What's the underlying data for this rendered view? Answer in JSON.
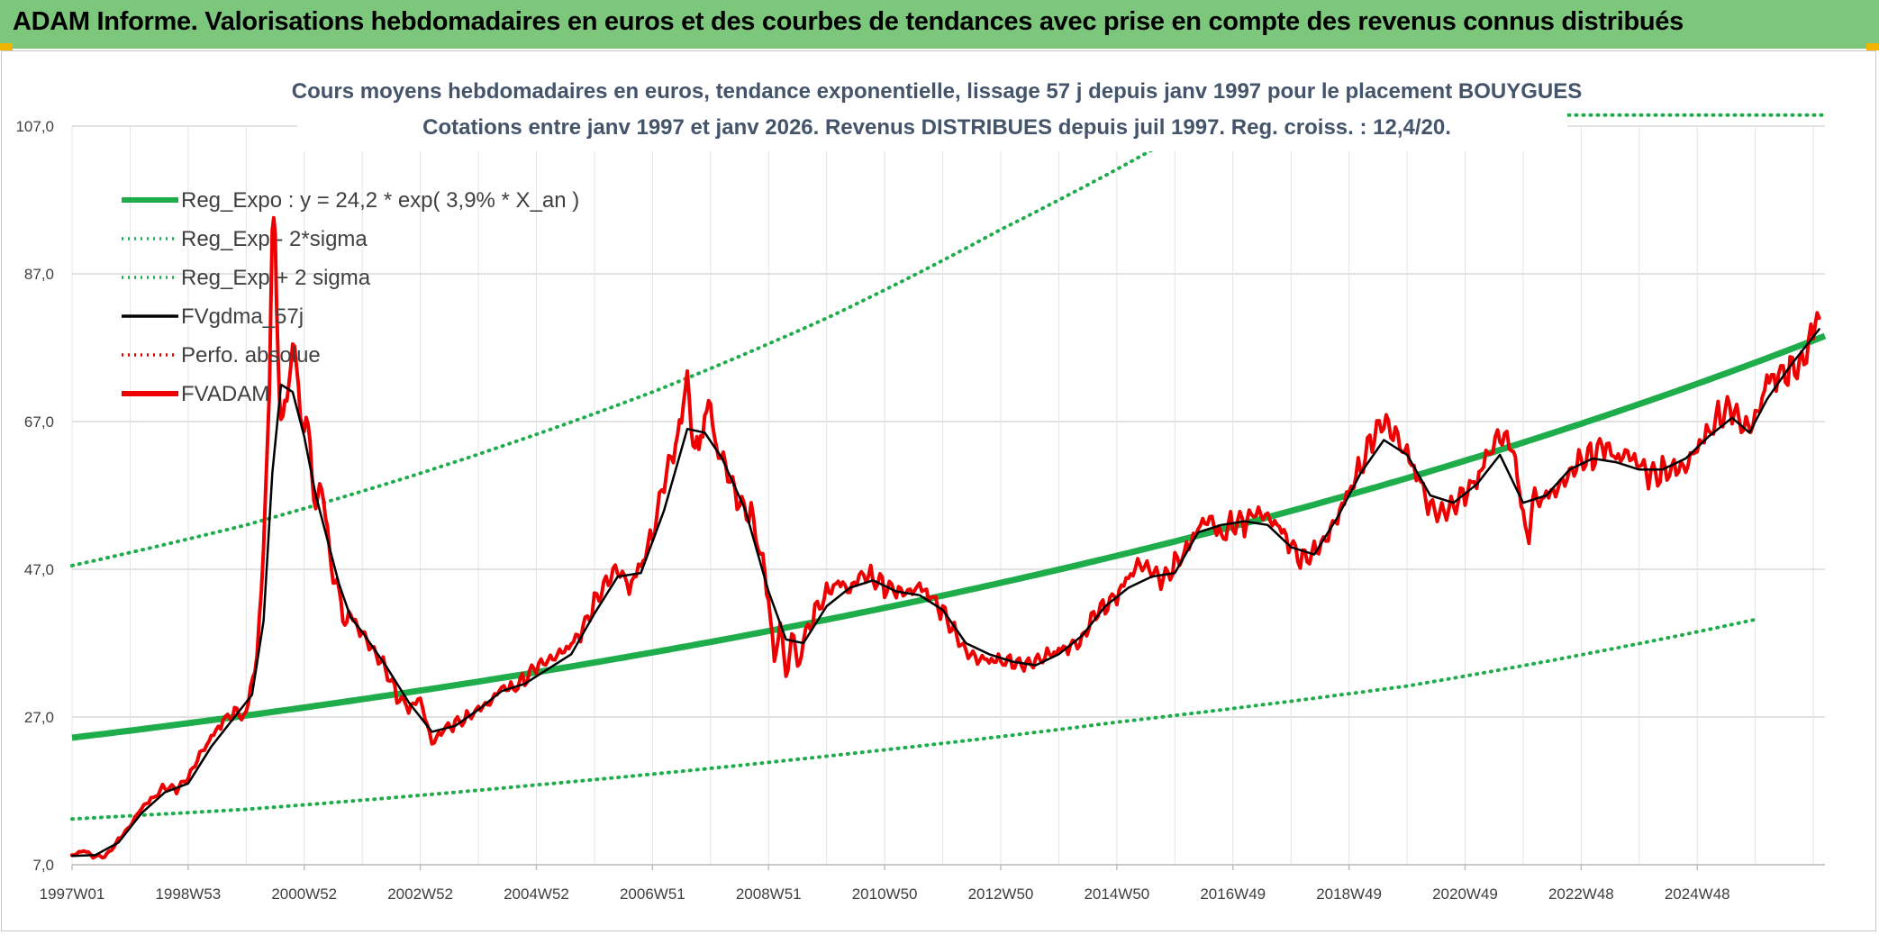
{
  "header": {
    "title": "ADAM Informe. Valorisations hebdomadaires en euros et des courbes de tendances avec prise en compte des revenus connus distribués"
  },
  "colors": {
    "banner": "#7dc77d",
    "reg_expo": "#1fad4c",
    "sigma_bands": "#1fad4c",
    "fvgdma": "#000000",
    "perfo": "#e00000",
    "fvadam": "#ee0000",
    "title_text": "#44546a"
  },
  "chart_data": {
    "type": "line",
    "title": "Cours moyens hebdomadaires en euros, tendance exponentielle, lissage 57 j depuis janv 1997 pour le placement BOUYGUES",
    "subtitle": "Cotations entre janv 1997 et janv 2026. Revenus DISTRIBUES depuis juil 1997. Reg. croiss. : 12,4/20.",
    "xlabel": "",
    "ylabel": "",
    "ylim": [
      7.0,
      107.0
    ],
    "y_ticks": [
      "7,0",
      "27,0",
      "47,0",
      "67,0",
      "87,0",
      "107,0"
    ],
    "x_range": [
      1997.0,
      2026.1
    ],
    "x_ticks": [
      {
        "label": "1997W01",
        "year": 1997.0
      },
      {
        "label": "1998W53",
        "year": 1999.0
      },
      {
        "label": "2000W52",
        "year": 2001.0
      },
      {
        "label": "2002W52",
        "year": 2003.0
      },
      {
        "label": "2004W52",
        "year": 2005.0
      },
      {
        "label": "2006W51",
        "year": 2007.0
      },
      {
        "label": "2008W51",
        "year": 2009.0
      },
      {
        "label": "2010W50",
        "year": 2011.0
      },
      {
        "label": "2012W50",
        "year": 2013.0
      },
      {
        "label": "2014W50",
        "year": 2015.0
      },
      {
        "label": "2016W49",
        "year": 2017.0
      },
      {
        "label": "2018W49",
        "year": 2019.0
      },
      {
        "label": "2020W49",
        "year": 2021.0
      },
      {
        "label": "2022W48",
        "year": 2023.0
      },
      {
        "label": "2024W48",
        "year": 2025.0
      }
    ],
    "grid": true,
    "legend_position": "top-left",
    "legend": [
      {
        "label": "Reg_Expo : y = 24,2 * exp( 3,9% *  X_an )",
        "style": "solid-thick",
        "color": "#1fad4c"
      },
      {
        "label": "Reg_Exp - 2*sigma",
        "style": "dotted",
        "color": "#1fad4c"
      },
      {
        "label": "Reg_Exp + 2 sigma",
        "style": "dotted",
        "color": "#1fad4c"
      },
      {
        "label": "FVgdma_57j",
        "style": "solid",
        "color": "#000000"
      },
      {
        "label": "Perfo. absolue",
        "style": "dotted",
        "color": "#e00000"
      },
      {
        "label": "FVADAM",
        "style": "solid-thick",
        "color": "#ee0000"
      }
    ],
    "regression": {
      "a": 24.2,
      "rate": 0.039,
      "x0": 1997.0
    },
    "bands": {
      "lower": [
        [
          1997.0,
          13.2
        ],
        [
          2000.0,
          14.5
        ],
        [
          2005.0,
          17.8
        ],
        [
          2010.0,
          21.7
        ],
        [
          2015.0,
          26.3
        ],
        [
          2020.0,
          31.2
        ],
        [
          2026.0,
          40.2
        ]
      ],
      "upper": [
        [
          1997.0,
          47.5
        ],
        [
          2000.0,
          53.0
        ],
        [
          2003.0,
          60.0
        ],
        [
          2007.0,
          71.0
        ],
        [
          2010.0,
          81.0
        ],
        [
          2013.0,
          93.0
        ],
        [
          2016.0,
          105.5
        ],
        [
          2016.1,
          108.5
        ],
        [
          2026.0,
          108.5
        ]
      ]
    },
    "series": [
      {
        "name": "FVADAM",
        "points": [
          [
            1997.0,
            8.1
          ],
          [
            1997.2,
            8.8
          ],
          [
            1997.4,
            8.0
          ],
          [
            1997.6,
            8.3
          ],
          [
            1997.8,
            10.5
          ],
          [
            1998.0,
            12.5
          ],
          [
            1998.2,
            15.0
          ],
          [
            1998.4,
            16.2
          ],
          [
            1998.6,
            17.5
          ],
          [
            1998.8,
            17.0
          ],
          [
            1999.0,
            18.5
          ],
          [
            1999.2,
            21.5
          ],
          [
            1999.4,
            24.0
          ],
          [
            1999.6,
            26.5
          ],
          [
            1999.8,
            28.0
          ],
          [
            2000.0,
            27.5
          ],
          [
            2000.15,
            33.0
          ],
          [
            2000.3,
            48.0
          ],
          [
            2000.4,
            74.0
          ],
          [
            2000.45,
            92.0
          ],
          [
            2000.5,
            90.0
          ],
          [
            2000.55,
            76.0
          ],
          [
            2000.6,
            68.0
          ],
          [
            2000.7,
            70.0
          ],
          [
            2000.8,
            77.0
          ],
          [
            2000.9,
            72.0
          ],
          [
            2001.0,
            66.0
          ],
          [
            2001.1,
            64.0
          ],
          [
            2001.2,
            55.0
          ],
          [
            2001.3,
            59.0
          ],
          [
            2001.4,
            51.0
          ],
          [
            2001.5,
            47.0
          ],
          [
            2001.6,
            43.0
          ],
          [
            2001.7,
            40.0
          ],
          [
            2001.8,
            41.0
          ],
          [
            2002.0,
            39.0
          ],
          [
            2002.2,
            36.5
          ],
          [
            2002.4,
            34.0
          ],
          [
            2002.6,
            30.0
          ],
          [
            2002.8,
            28.0
          ],
          [
            2003.0,
            29.0
          ],
          [
            2003.2,
            23.0
          ],
          [
            2003.4,
            25.0
          ],
          [
            2003.6,
            26.0
          ],
          [
            2003.8,
            27.0
          ],
          [
            2004.0,
            28.5
          ],
          [
            2004.2,
            29.5
          ],
          [
            2004.4,
            31.5
          ],
          [
            2004.6,
            31.0
          ],
          [
            2004.8,
            32.0
          ],
          [
            2005.0,
            33.5
          ],
          [
            2005.2,
            34.0
          ],
          [
            2005.4,
            35.0
          ],
          [
            2005.6,
            36.5
          ],
          [
            2005.8,
            39.0
          ],
          [
            2006.0,
            43.0
          ],
          [
            2006.2,
            46.0
          ],
          [
            2006.4,
            48.0
          ],
          [
            2006.6,
            45.0
          ],
          [
            2006.8,
            47.5
          ],
          [
            2007.0,
            51.0
          ],
          [
            2007.2,
            58.0
          ],
          [
            2007.4,
            63.0
          ],
          [
            2007.5,
            69.0
          ],
          [
            2007.6,
            71.0
          ],
          [
            2007.7,
            66.0
          ],
          [
            2007.8,
            62.0
          ],
          [
            2007.9,
            68.0
          ],
          [
            2008.0,
            70.0
          ],
          [
            2008.1,
            63.0
          ],
          [
            2008.3,
            59.0
          ],
          [
            2008.5,
            55.0
          ],
          [
            2008.7,
            54.0
          ],
          [
            2008.9,
            48.0
          ],
          [
            2009.0,
            43.0
          ],
          [
            2009.1,
            35.0
          ],
          [
            2009.2,
            39.0
          ],
          [
            2009.3,
            33.0
          ],
          [
            2009.4,
            38.0
          ],
          [
            2009.5,
            34.0
          ],
          [
            2009.6,
            37.0
          ],
          [
            2009.8,
            41.0
          ],
          [
            2010.0,
            44.0
          ],
          [
            2010.2,
            46.0
          ],
          [
            2010.4,
            45.0
          ],
          [
            2010.6,
            47.0
          ],
          [
            2010.8,
            46.0
          ],
          [
            2011.0,
            44.5
          ],
          [
            2011.2,
            43.5
          ],
          [
            2011.4,
            43.0
          ],
          [
            2011.6,
            44.0
          ],
          [
            2011.8,
            43.0
          ],
          [
            2012.0,
            41.5
          ],
          [
            2012.2,
            39.0
          ],
          [
            2012.4,
            36.5
          ],
          [
            2012.6,
            35.5
          ],
          [
            2012.8,
            35.0
          ],
          [
            2013.0,
            34.5
          ],
          [
            2013.2,
            34.0
          ],
          [
            2013.4,
            33.5
          ],
          [
            2013.6,
            34.0
          ],
          [
            2013.8,
            35.0
          ],
          [
            2014.0,
            36.0
          ],
          [
            2014.2,
            37.0
          ],
          [
            2014.4,
            38.0
          ],
          [
            2014.6,
            41.5
          ],
          [
            2014.8,
            42.5
          ],
          [
            2015.0,
            43.5
          ],
          [
            2015.2,
            45.5
          ],
          [
            2015.4,
            47.0
          ],
          [
            2015.6,
            46.0
          ],
          [
            2015.8,
            45.0
          ],
          [
            2016.0,
            47.5
          ],
          [
            2016.2,
            50.0
          ],
          [
            2016.4,
            53.5
          ],
          [
            2016.6,
            55.0
          ],
          [
            2016.8,
            52.0
          ],
          [
            2017.0,
            53.5
          ],
          [
            2017.2,
            53.0
          ],
          [
            2017.4,
            54.0
          ],
          [
            2017.6,
            53.0
          ],
          [
            2017.8,
            52.0
          ],
          [
            2018.0,
            50.0
          ],
          [
            2018.2,
            48.5
          ],
          [
            2018.4,
            50.0
          ],
          [
            2018.6,
            52.0
          ],
          [
            2018.8,
            55.0
          ],
          [
            2019.0,
            58.0
          ],
          [
            2019.2,
            60.5
          ],
          [
            2019.4,
            64.0
          ],
          [
            2019.6,
            66.0
          ],
          [
            2019.8,
            64.0
          ],
          [
            2020.0,
            62.0
          ],
          [
            2020.2,
            59.5
          ],
          [
            2020.4,
            56.0
          ],
          [
            2020.6,
            55.5
          ],
          [
            2020.8,
            56.5
          ],
          [
            2021.0,
            58.0
          ],
          [
            2021.2,
            59.0
          ],
          [
            2021.4,
            62.0
          ],
          [
            2021.6,
            64.0
          ],
          [
            2021.8,
            63.0
          ],
          [
            2021.9,
            60.0
          ],
          [
            2022.0,
            53.5
          ],
          [
            2022.1,
            52.5
          ],
          [
            2022.2,
            56.0
          ],
          [
            2022.4,
            57.5
          ],
          [
            2022.6,
            59.0
          ],
          [
            2022.8,
            61.0
          ],
          [
            2023.0,
            62.5
          ],
          [
            2023.2,
            62.5
          ],
          [
            2023.4,
            63.5
          ],
          [
            2023.6,
            61.0
          ],
          [
            2023.8,
            61.5
          ],
          [
            2024.0,
            60.5
          ],
          [
            2024.2,
            59.5
          ],
          [
            2024.4,
            60.5
          ],
          [
            2024.6,
            61.5
          ],
          [
            2024.8,
            62.0
          ],
          [
            2025.0,
            64.5
          ],
          [
            2025.2,
            66.0
          ],
          [
            2025.4,
            67.5
          ],
          [
            2025.6,
            68.0
          ],
          [
            2025.8,
            65.0
          ],
          [
            2026.0,
            66.0
          ],
          [
            2026.2,
            72.0
          ],
          [
            2026.4,
            73.5
          ],
          [
            2026.6,
            75.0
          ],
          [
            2026.8,
            76.0
          ],
          [
            2027.0,
            80.5
          ],
          [
            2027.1,
            81.0
          ]
        ]
      },
      {
        "name": "FVgdma_57j",
        "points": [
          [
            1997.0,
            8.2
          ],
          [
            1997.4,
            8.3
          ],
          [
            1997.8,
            10.0
          ],
          [
            1998.2,
            14.0
          ],
          [
            1998.6,
            16.8
          ],
          [
            1999.0,
            18.0
          ],
          [
            1999.4,
            23.0
          ],
          [
            1999.8,
            27.0
          ],
          [
            2000.1,
            30.0
          ],
          [
            2000.3,
            40.0
          ],
          [
            2000.45,
            60.0
          ],
          [
            2000.6,
            72.0
          ],
          [
            2000.8,
            71.0
          ],
          [
            2001.0,
            65.0
          ],
          [
            2001.2,
            57.0
          ],
          [
            2001.4,
            51.0
          ],
          [
            2001.6,
            45.0
          ],
          [
            2001.8,
            40.5
          ],
          [
            2002.0,
            38.5
          ],
          [
            2002.4,
            34.0
          ],
          [
            2002.8,
            29.0
          ],
          [
            2003.2,
            25.0
          ],
          [
            2003.6,
            25.8
          ],
          [
            2004.0,
            28.0
          ],
          [
            2004.4,
            30.5
          ],
          [
            2004.8,
            31.5
          ],
          [
            2005.2,
            33.5
          ],
          [
            2005.6,
            35.5
          ],
          [
            2006.0,
            41.0
          ],
          [
            2006.4,
            46.0
          ],
          [
            2006.8,
            46.5
          ],
          [
            2007.2,
            55.0
          ],
          [
            2007.6,
            66.0
          ],
          [
            2007.9,
            65.5
          ],
          [
            2008.2,
            62.0
          ],
          [
            2008.6,
            55.0
          ],
          [
            2009.0,
            44.0
          ],
          [
            2009.3,
            37.5
          ],
          [
            2009.6,
            37.0
          ],
          [
            2010.0,
            42.0
          ],
          [
            2010.4,
            44.5
          ],
          [
            2010.8,
            45.5
          ],
          [
            2011.2,
            44.0
          ],
          [
            2011.6,
            43.5
          ],
          [
            2012.0,
            41.5
          ],
          [
            2012.4,
            37.0
          ],
          [
            2012.8,
            35.5
          ],
          [
            2013.2,
            34.5
          ],
          [
            2013.6,
            34.0
          ],
          [
            2014.0,
            35.5
          ],
          [
            2014.4,
            38.0
          ],
          [
            2014.8,
            42.0
          ],
          [
            2015.2,
            44.5
          ],
          [
            2015.6,
            46.0
          ],
          [
            2016.0,
            46.5
          ],
          [
            2016.4,
            52.0
          ],
          [
            2016.8,
            53.0
          ],
          [
            2017.2,
            53.5
          ],
          [
            2017.6,
            53.0
          ],
          [
            2018.0,
            50.0
          ],
          [
            2018.4,
            49.0
          ],
          [
            2018.8,
            54.0
          ],
          [
            2019.2,
            60.0
          ],
          [
            2019.6,
            64.5
          ],
          [
            2020.0,
            62.5
          ],
          [
            2020.4,
            57.0
          ],
          [
            2020.8,
            56.0
          ],
          [
            2021.2,
            58.5
          ],
          [
            2021.6,
            62.5
          ],
          [
            2022.0,
            56.0
          ],
          [
            2022.4,
            57.0
          ],
          [
            2022.8,
            60.5
          ],
          [
            2023.2,
            62.0
          ],
          [
            2023.6,
            61.5
          ],
          [
            2024.0,
            60.5
          ],
          [
            2024.4,
            60.5
          ],
          [
            2024.8,
            62.0
          ],
          [
            2025.2,
            65.0
          ],
          [
            2025.6,
            67.5
          ],
          [
            2025.9,
            65.5
          ],
          [
            2026.2,
            70.0
          ],
          [
            2026.6,
            74.5
          ],
          [
            2027.1,
            79.5
          ]
        ]
      }
    ]
  }
}
